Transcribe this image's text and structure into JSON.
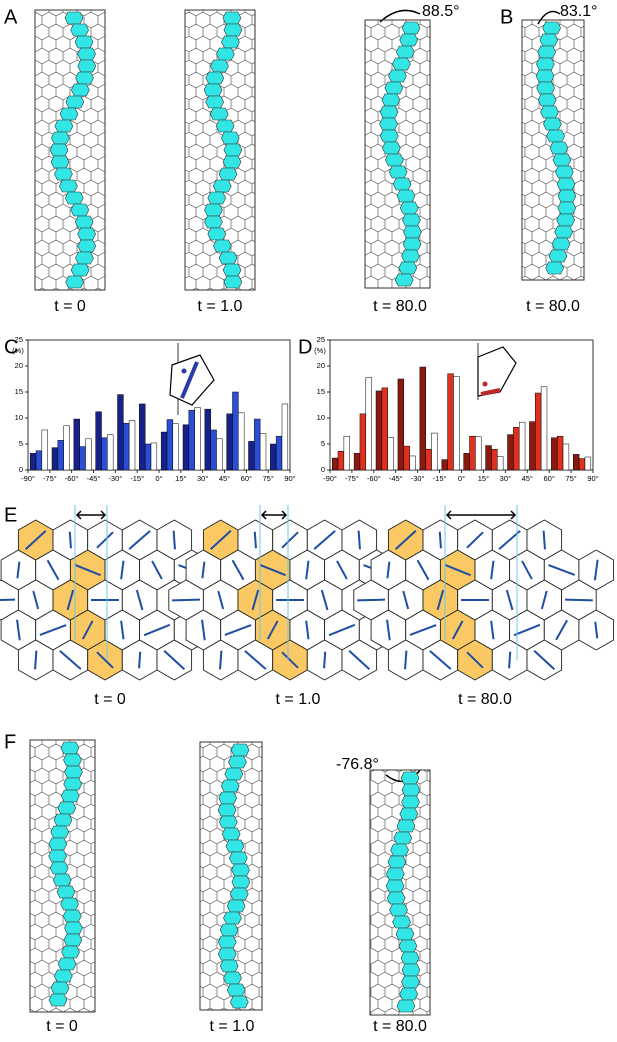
{
  "panel_labels": [
    "A",
    "B",
    "C",
    "D",
    "E",
    "F"
  ],
  "captions_a": [
    "t = 0",
    "t = 1.0",
    "t = 80.0"
  ],
  "caption_b": "t = 80.0",
  "captions_e": [
    "t = 0",
    "t = 1.0",
    "t = 80.0"
  ],
  "captions_f": [
    "t = 0",
    "t = 1.0",
    "t = 80.0"
  ],
  "angles": [
    "88.5°",
    "83.1°",
    "-76.8°"
  ],
  "chart_data": [
    {
      "type": "bar",
      "ylabel": "(%)",
      "x": [
        -82.5,
        -67.5,
        -52.5,
        -37.5,
        -22.5,
        -7.5,
        7.5,
        22.5,
        37.5,
        52.5,
        67.5,
        82.5
      ],
      "xlim": [
        -90,
        90
      ],
      "xticks": [
        {
          "value": -90,
          "label": "-90°"
        },
        {
          "value": -75,
          "label": "-75°"
        },
        {
          "value": -60,
          "label": "-60°"
        },
        {
          "value": -45,
          "label": "-45°"
        },
        {
          "value": -30,
          "label": "-30°"
        },
        {
          "value": -15,
          "label": "-15°"
        },
        {
          "value": 0,
          "label": "0°"
        },
        {
          "value": 15,
          "label": "15°"
        },
        {
          "value": 30,
          "label": "30°"
        },
        {
          "value": 45,
          "label": "45°"
        },
        {
          "value": 60,
          "label": "60°"
        },
        {
          "value": 75,
          "label": "75°"
        },
        {
          "value": 90,
          "label": "90°"
        }
      ],
      "ylim": [
        0,
        25
      ],
      "yticks": [
        0,
        5,
        10,
        15,
        20,
        25
      ],
      "series": [
        {
          "color": "#16218a",
          "values": [
            3.2,
            4.3,
            9.8,
            11.2,
            14.5,
            12.7,
            7.3,
            8.7,
            11.7,
            10.8,
            5.5,
            5.0
          ]
        },
        {
          "color": "#2a4fd6",
          "values": [
            3.7,
            5.7,
            4.5,
            6.2,
            9.0,
            5.0,
            9.7,
            11.5,
            7.7,
            15.0,
            9.8,
            6.5
          ]
        },
        {
          "color": "#ffffff",
          "values": [
            7.7,
            8.5,
            6.0,
            6.8,
            9.5,
            5.2,
            8.9,
            12.0,
            6.0,
            11.0,
            7.0,
            12.7
          ]
        }
      ]
    },
    {
      "type": "bar",
      "ylabel": "(%)",
      "x": [
        -82.5,
        -67.5,
        -52.5,
        -37.5,
        -22.5,
        -7.5,
        7.5,
        22.5,
        37.5,
        52.5,
        67.5,
        82.5
      ],
      "xlim": [
        -90,
        90
      ],
      "xticks": [
        {
          "value": -90,
          "label": "-90°"
        },
        {
          "value": -75,
          "label": "-75°"
        },
        {
          "value": -60,
          "label": "-60°"
        },
        {
          "value": -45,
          "label": "-45°"
        },
        {
          "value": -30,
          "label": "-30°"
        },
        {
          "value": -15,
          "label": "-15°"
        },
        {
          "value": 0,
          "label": "0°"
        },
        {
          "value": 15,
          "label": "15°"
        },
        {
          "value": 30,
          "label": "30°"
        },
        {
          "value": 45,
          "label": "45°"
        },
        {
          "value": 60,
          "label": "60°"
        },
        {
          "value": 75,
          "label": "75°"
        },
        {
          "value": 90,
          "label": "90°"
        }
      ],
      "ylim": [
        0,
        25
      ],
      "yticks": [
        0,
        5,
        10,
        15,
        20,
        25
      ],
      "series": [
        {
          "color": "#8a1a10",
          "values": [
            2.3,
            3.2,
            15.2,
            17.5,
            19.8,
            2.0,
            3.2,
            4.7,
            6.8,
            9.3,
            6.2,
            3.0
          ]
        },
        {
          "color": "#e0301e",
          "values": [
            3.6,
            10.8,
            15.8,
            4.6,
            4.0,
            18.5,
            6.5,
            4.0,
            8.2,
            14.8,
            6.5,
            2.2
          ]
        },
        {
          "color": "#ffffff",
          "values": [
            6.5,
            17.8,
            6.3,
            2.7,
            7.1,
            18.0,
            6.4,
            2.6,
            9.2,
            16.0,
            5.0,
            2.5
          ]
        }
      ]
    }
  ]
}
